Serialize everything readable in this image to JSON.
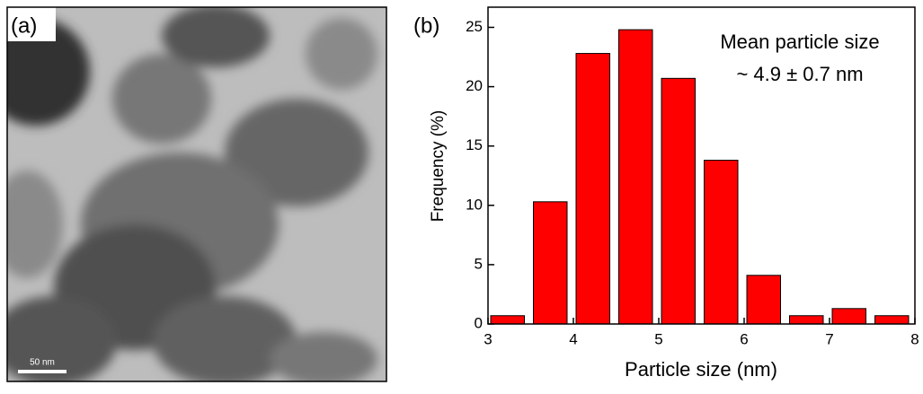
{
  "image_panel": {
    "label": "(a)",
    "scale_bar": "50 nm"
  },
  "chart_data": {
    "type": "histogram",
    "label": "(b)",
    "bins": [
      3,
      3.5,
      4,
      4.5,
      5,
      5.5,
      6,
      6.5,
      7,
      7.5,
      8
    ],
    "values": [
      0.7,
      10.3,
      22.8,
      24.8,
      20.7,
      13.8,
      4.1,
      0.7,
      1.3,
      0.7
    ],
    "color": "#ff0000",
    "xlabel": "Particle size (nm)",
    "ylabel": "Frequency (%)",
    "annotations": [
      "Mean particle size",
      "~ 4.9 ± 0.7 nm"
    ],
    "xlim": [
      3,
      8
    ],
    "xticks": [
      3,
      4,
      5,
      6,
      7,
      8
    ],
    "ylim": [
      0,
      26.7
    ],
    "yticks": [
      0,
      5,
      10,
      15,
      20,
      25
    ]
  }
}
